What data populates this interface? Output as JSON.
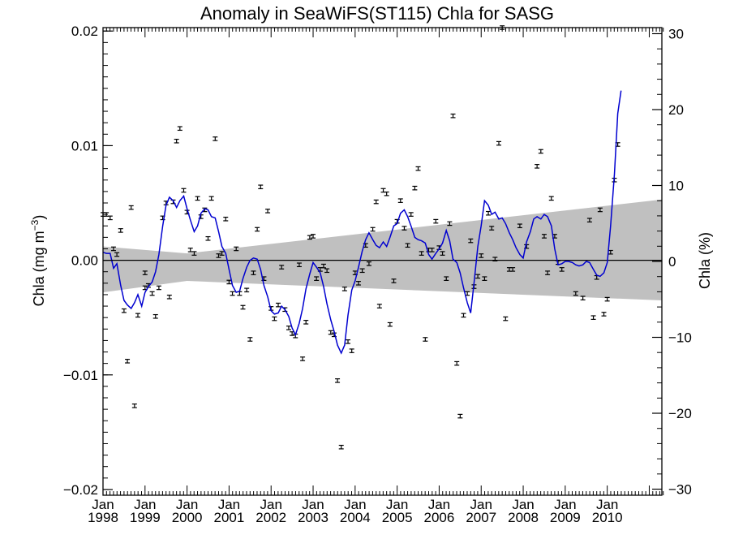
{
  "chart_data": {
    "type": "scatter",
    "title": "Anomaly in SeaWiFS(ST115) Chla for SASG",
    "ylabel": "Chla (mg m",
    "ylabel_sup": "−3",
    "ylabel_close": ")",
    "y2label": "Chla (%)",
    "xlim": [
      1998.0,
      2011.3
    ],
    "ylim": [
      -0.0205,
      0.0203
    ],
    "y2lim": [
      -30.8,
      30.8
    ],
    "grid": false,
    "colors": {
      "line": "#0000d0",
      "band": "#c0c0c0",
      "points": "#000000",
      "zero": "#000000"
    },
    "x_ticks": [
      {
        "x": 1998,
        "top": "Jan",
        "bottom": "1998"
      },
      {
        "x": 1999,
        "top": "Jan",
        "bottom": "1999"
      },
      {
        "x": 2000,
        "top": "Jan",
        "bottom": "2000"
      },
      {
        "x": 2001,
        "top": "Jan",
        "bottom": "2001"
      },
      {
        "x": 2002,
        "top": "Jan",
        "bottom": "2002"
      },
      {
        "x": 2003,
        "top": "Jan",
        "bottom": "2003"
      },
      {
        "x": 2004,
        "top": "Jan",
        "bottom": "2004"
      },
      {
        "x": 2005,
        "top": "Jan",
        "bottom": "2005"
      },
      {
        "x": 2006,
        "top": "Jan",
        "bottom": "2006"
      },
      {
        "x": 2007,
        "top": "Jan",
        "bottom": "2007"
      },
      {
        "x": 2008,
        "top": "Jan",
        "bottom": "2008"
      },
      {
        "x": 2009,
        "top": "Jan",
        "bottom": "2009"
      },
      {
        "x": 2010,
        "top": "Jan",
        "bottom": "2010"
      }
    ],
    "y_ticks": [
      {
        "value": 0.02,
        "label": "0.02"
      },
      {
        "value": 0.01,
        "label": "0.01"
      },
      {
        "value": 0.0,
        "label": "0.00"
      },
      {
        "value": -0.01,
        "label": "−0.01"
      },
      {
        "value": -0.02,
        "label": "−0.02"
      }
    ],
    "y2_ticks": [
      {
        "value": 30,
        "label": "30"
      },
      {
        "value": 20,
        "label": "20"
      },
      {
        "value": 10,
        "label": "10"
      },
      {
        "value": 0,
        "label": "0"
      },
      {
        "value": -10,
        "label": "−10"
      },
      {
        "value": -20,
        "label": "−20"
      },
      {
        "value": -30,
        "label": "−30"
      }
    ],
    "uncertainty_band": {
      "x": [
        1998.0,
        2000.0,
        2011.3
      ],
      "upper": [
        0.0012,
        0.0006,
        0.0053
      ],
      "lower": [
        -0.0028,
        -0.0018,
        -0.0035
      ]
    },
    "monthly_anomaly": [
      {
        "x": 1998.0,
        "y": 0.004
      },
      {
        "x": 1998.08,
        "y": 0.004
      },
      {
        "x": 1998.17,
        "y": 0.0037
      },
      {
        "x": 1998.25,
        "y": 0.001
      },
      {
        "x": 1998.33,
        "y": 0.0005
      },
      {
        "x": 1998.42,
        "y": 0.0026
      },
      {
        "x": 1998.5,
        "y": -0.0044
      },
      {
        "x": 1998.58,
        "y": -0.0088
      },
      {
        "x": 1998.67,
        "y": 0.0046
      },
      {
        "x": 1998.75,
        "y": -0.0127
      },
      {
        "x": 1998.83,
        "y": -0.0048
      },
      {
        "x": 1999.0,
        "y": -0.0011
      },
      {
        "x": 1999.0,
        "y": -0.0024
      },
      {
        "x": 1999.08,
        "y": -0.0022
      },
      {
        "x": 1999.17,
        "y": -0.0029
      },
      {
        "x": 1999.25,
        "y": -0.0049
      },
      {
        "x": 1999.33,
        "y": -0.0024
      },
      {
        "x": 1999.42,
        "y": 0.0037
      },
      {
        "x": 1999.5,
        "y": 0.005
      },
      {
        "x": 1999.58,
        "y": -0.0032
      },
      {
        "x": 1999.67,
        "y": 0.0051
      },
      {
        "x": 1999.75,
        "y": 0.0104
      },
      {
        "x": 1999.83,
        "y": 0.0115
      },
      {
        "x": 1999.92,
        "y": 0.0061
      },
      {
        "x": 2000.0,
        "y": 0.0042
      },
      {
        "x": 2000.08,
        "y": 0.0009
      },
      {
        "x": 2000.17,
        "y": 0.0006
      },
      {
        "x": 2000.25,
        "y": 0.0054
      },
      {
        "x": 2000.33,
        "y": 0.0038
      },
      {
        "x": 2000.42,
        "y": 0.0044
      },
      {
        "x": 2000.5,
        "y": 0.0019
      },
      {
        "x": 2000.58,
        "y": 0.0054
      },
      {
        "x": 2000.67,
        "y": 0.0106
      },
      {
        "x": 2000.75,
        "y": 0.0004
      },
      {
        "x": 2000.83,
        "y": 0.0006
      },
      {
        "x": 2000.92,
        "y": 0.0036
      },
      {
        "x": 2001.0,
        "y": -0.0019
      },
      {
        "x": 2001.08,
        "y": -0.0029
      },
      {
        "x": 2001.17,
        "y": 0.001
      },
      {
        "x": 2001.25,
        "y": -0.0029
      },
      {
        "x": 2001.33,
        "y": -0.0041
      },
      {
        "x": 2001.42,
        "y": -0.0026
      },
      {
        "x": 2001.5,
        "y": -0.0069
      },
      {
        "x": 2001.58,
        "y": -0.0011
      },
      {
        "x": 2001.67,
        "y": 0.0027
      },
      {
        "x": 2001.75,
        "y": 0.0064
      },
      {
        "x": 2001.83,
        "y": -0.0016
      },
      {
        "x": 2001.92,
        "y": 0.0043
      },
      {
        "x": 2002.0,
        "y": -0.0042
      },
      {
        "x": 2002.08,
        "y": -0.0051
      },
      {
        "x": 2002.17,
        "y": -0.0039
      },
      {
        "x": 2002.25,
        "y": -0.0006
      },
      {
        "x": 2002.33,
        "y": -0.0043
      },
      {
        "x": 2002.42,
        "y": -0.0059
      },
      {
        "x": 2002.5,
        "y": -0.0064
      },
      {
        "x": 2002.58,
        "y": -0.0066
      },
      {
        "x": 2002.67,
        "y": -0.0004
      },
      {
        "x": 2002.75,
        "y": -0.0086
      },
      {
        "x": 2002.83,
        "y": -0.0054
      },
      {
        "x": 2002.92,
        "y": 0.002
      },
      {
        "x": 2003.0,
        "y": 0.0021
      },
      {
        "x": 2003.08,
        "y": -0.0016
      },
      {
        "x": 2003.17,
        "y": -0.0008
      },
      {
        "x": 2003.25,
        "y": -0.0005
      },
      {
        "x": 2003.33,
        "y": -0.0009
      },
      {
        "x": 2003.42,
        "y": -0.0063
      },
      {
        "x": 2003.5,
        "y": -0.0065
      },
      {
        "x": 2003.58,
        "y": -0.0105
      },
      {
        "x": 2003.67,
        "y": -0.0163
      },
      {
        "x": 2003.75,
        "y": -0.0025
      },
      {
        "x": 2003.83,
        "y": -0.0071
      },
      {
        "x": 2003.92,
        "y": -0.0079
      },
      {
        "x": 2004.0,
        "y": -0.0011
      },
      {
        "x": 2004.08,
        "y": -0.002
      },
      {
        "x": 2004.17,
        "y": -0.0009
      },
      {
        "x": 2004.25,
        "y": 0.0013
      },
      {
        "x": 2004.33,
        "y": -0.0003
      },
      {
        "x": 2004.42,
        "y": 0.0027
      },
      {
        "x": 2004.5,
        "y": 0.0051
      },
      {
        "x": 2004.58,
        "y": -0.004
      },
      {
        "x": 2004.67,
        "y": 0.0061
      },
      {
        "x": 2004.75,
        "y": 0.0058
      },
      {
        "x": 2004.83,
        "y": -0.0056
      },
      {
        "x": 2004.92,
        "y": -0.0018
      },
      {
        "x": 2005.0,
        "y": 0.0034
      },
      {
        "x": 2005.08,
        "y": 0.0052
      },
      {
        "x": 2005.17,
        "y": 0.0028
      },
      {
        "x": 2005.25,
        "y": 0.0013
      },
      {
        "x": 2005.33,
        "y": 0.004
      },
      {
        "x": 2005.42,
        "y": 0.0063
      },
      {
        "x": 2005.5,
        "y": 0.008
      },
      {
        "x": 2005.58,
        "y": 0.0006
      },
      {
        "x": 2005.67,
        "y": -0.0069
      },
      {
        "x": 2005.75,
        "y": 0.0009
      },
      {
        "x": 2005.83,
        "y": 0.0009
      },
      {
        "x": 2005.92,
        "y": 0.0034
      },
      {
        "x": 2006.0,
        "y": 0.0011
      },
      {
        "x": 2006.08,
        "y": 0.0006
      },
      {
        "x": 2006.17,
        "y": -0.0016
      },
      {
        "x": 2006.25,
        "y": 0.0032
      },
      {
        "x": 2006.33,
        "y": 0.0126
      },
      {
        "x": 2006.42,
        "y": -0.009
      },
      {
        "x": 2006.5,
        "y": -0.0136
      },
      {
        "x": 2006.58,
        "y": -0.0048
      },
      {
        "x": 2006.67,
        "y": -0.0029
      },
      {
        "x": 2006.75,
        "y": 0.0017
      },
      {
        "x": 2006.83,
        "y": -0.0023
      },
      {
        "x": 2006.92,
        "y": -0.0014
      },
      {
        "x": 2007.0,
        "y": 0.0004
      },
      {
        "x": 2007.08,
        "y": -0.0016
      },
      {
        "x": 2007.17,
        "y": 0.0041
      },
      {
        "x": 2007.25,
        "y": 0.0028
      },
      {
        "x": 2007.33,
        "y": 0.0001
      },
      {
        "x": 2007.42,
        "y": 0.0102
      },
      {
        "x": 2007.5,
        "y": 0.0203
      },
      {
        "x": 2007.58,
        "y": -0.0051
      },
      {
        "x": 2007.67,
        "y": -0.0008
      },
      {
        "x": 2007.75,
        "y": -0.0008
      },
      {
        "x": 2007.92,
        "y": 0.003
      },
      {
        "x": 2008.08,
        "y": 0.0012
      },
      {
        "x": 2008.33,
        "y": 0.0082
      },
      {
        "x": 2008.42,
        "y": 0.0095
      },
      {
        "x": 2008.5,
        "y": 0.0021
      },
      {
        "x": 2008.58,
        "y": -0.0011
      },
      {
        "x": 2008.67,
        "y": 0.0054
      },
      {
        "x": 2008.75,
        "y": 0.0021
      },
      {
        "x": 2008.83,
        "y": -0.0002
      },
      {
        "x": 2008.92,
        "y": -0.0008
      },
      {
        "x": 2009.25,
        "y": -0.0029
      },
      {
        "x": 2009.42,
        "y": -0.0033
      },
      {
        "x": 2009.58,
        "y": 0.0035
      },
      {
        "x": 2009.67,
        "y": -0.005
      },
      {
        "x": 2009.75,
        "y": -0.0015
      },
      {
        "x": 2009.83,
        "y": 0.0044
      },
      {
        "x": 2009.92,
        "y": -0.0047
      },
      {
        "x": 2010.0,
        "y": -0.0034
      },
      {
        "x": 2010.08,
        "y": 0.0007
      },
      {
        "x": 2010.17,
        "y": 0.007
      },
      {
        "x": 2010.25,
        "y": 0.0101
      }
    ],
    "smoothed_series": {
      "x": [
        1998.0,
        1998.08,
        1998.17,
        1998.25,
        1998.33,
        1998.42,
        1998.5,
        1998.58,
        1998.67,
        1998.75,
        1998.83,
        1998.92,
        1999.0,
        1999.08,
        1999.17,
        1999.25,
        1999.33,
        1999.42,
        1999.5,
        1999.58,
        1999.67,
        1999.75,
        1999.83,
        1999.92,
        2000.0,
        2000.08,
        2000.17,
        2000.25,
        2000.33,
        2000.42,
        2000.5,
        2000.58,
        2000.67,
        2000.75,
        2000.83,
        2000.92,
        2001.0,
        2001.08,
        2001.17,
        2001.25,
        2001.33,
        2001.42,
        2001.5,
        2001.58,
        2001.67,
        2001.75,
        2001.83,
        2001.92,
        2002.0,
        2002.08,
        2002.17,
        2002.25,
        2002.33,
        2002.42,
        2002.5,
        2002.58,
        2002.67,
        2002.75,
        2002.83,
        2002.92,
        2003.0,
        2003.08,
        2003.17,
        2003.25,
        2003.33,
        2003.42,
        2003.5,
        2003.58,
        2003.67,
        2003.75,
        2003.83,
        2003.92,
        2004.0,
        2004.08,
        2004.17,
        2004.25,
        2004.33,
        2004.42,
        2004.5,
        2004.58,
        2004.67,
        2004.75,
        2004.83,
        2004.92,
        2005.0,
        2005.08,
        2005.17,
        2005.25,
        2005.33,
        2005.42,
        2005.5,
        2005.58,
        2005.67,
        2005.75,
        2005.83,
        2005.92,
        2006.0,
        2006.08,
        2006.17,
        2006.25,
        2006.33,
        2006.42,
        2006.5,
        2006.58,
        2006.67,
        2006.75,
        2006.83,
        2006.92,
        2007.0,
        2007.08,
        2007.17,
        2007.25,
        2007.33,
        2007.42,
        2007.5,
        2007.58,
        2007.67,
        2007.75,
        2007.83,
        2007.92,
        2008.0,
        2008.08,
        2008.17,
        2008.25,
        2008.33,
        2008.42,
        2008.5,
        2008.58,
        2008.67,
        2008.75,
        2008.83,
        2008.92,
        2009.0,
        2009.08,
        2009.17,
        2009.25,
        2009.33,
        2009.42,
        2009.5,
        2009.58,
        2009.67,
        2009.75,
        2009.83,
        2009.92,
        2010.0,
        2010.08,
        2010.17,
        2010.25,
        2010.33
      ],
      "y": [
        0.0007,
        0.0006,
        0.0006,
        -0.0007,
        -0.0003,
        -0.0022,
        -0.0035,
        -0.0039,
        -0.0042,
        -0.0037,
        -0.003,
        -0.004,
        -0.0028,
        -0.0023,
        -0.0019,
        -0.001,
        0.0005,
        0.003,
        0.0048,
        0.0055,
        0.0052,
        0.0046,
        0.0052,
        0.0056,
        0.0045,
        0.0035,
        0.0025,
        0.003,
        0.0041,
        0.0045,
        0.0044,
        0.0038,
        0.0037,
        0.0025,
        0.0012,
        0.0006,
        -0.0008,
        -0.0022,
        -0.0028,
        -0.0027,
        -0.0016,
        -0.0006,
        0.0,
        0.0002,
        0.0001,
        -0.0008,
        -0.0022,
        -0.0032,
        -0.0044,
        -0.0047,
        -0.0046,
        -0.004,
        -0.0043,
        -0.0049,
        -0.0059,
        -0.0065,
        -0.0055,
        -0.0042,
        -0.0025,
        -0.0012,
        -0.0002,
        -0.0006,
        -0.0011,
        -0.0023,
        -0.0038,
        -0.0052,
        -0.0062,
        -0.0074,
        -0.0081,
        -0.0074,
        -0.0048,
        -0.0026,
        -0.0018,
        -0.0006,
        0.0008,
        0.0018,
        0.0024,
        0.0018,
        0.0013,
        0.0011,
        0.0016,
        0.0012,
        0.002,
        0.003,
        0.0032,
        0.0041,
        0.0044,
        0.0038,
        0.003,
        0.002,
        0.0018,
        0.0017,
        0.0015,
        0.0005,
        0.0001,
        0.0006,
        0.001,
        0.0015,
        0.0026,
        0.0017,
        0.0001,
        -0.0002,
        -0.0011,
        -0.0024,
        -0.0037,
        -0.0046,
        -0.002,
        0.0012,
        0.003,
        0.0052,
        0.0048,
        0.004,
        0.0042,
        0.0036,
        0.0037,
        0.0032,
        0.0024,
        0.0018,
        0.0011,
        0.0005,
        0.0002,
        0.0016,
        0.0025,
        0.0036,
        0.0038,
        0.0036,
        0.004,
        0.0038,
        0.003,
        0.001,
        -0.0004,
        -0.0003,
        -0.0001,
        -0.0001,
        -0.0002,
        -0.0004,
        -0.0005,
        -0.0004,
        -0.0001,
        -0.0002,
        -0.0008,
        -0.0013,
        -0.0014,
        -0.0011,
        -0.0002,
        0.003,
        0.0075,
        0.0128,
        0.0148
      ]
    }
  }
}
